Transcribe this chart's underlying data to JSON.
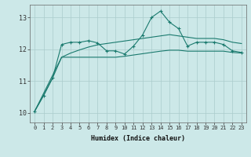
{
  "xlabel": "Humidex (Indice chaleur)",
  "background_color": "#cce8e8",
  "line_color": "#1a7a6e",
  "grid_color": "#aacccc",
  "xlim": [
    -0.5,
    23.5
  ],
  "ylim": [
    9.7,
    13.4
  ],
  "yticks": [
    10,
    11,
    12,
    13
  ],
  "xticks": [
    0,
    1,
    2,
    3,
    4,
    5,
    6,
    7,
    8,
    9,
    10,
    11,
    12,
    13,
    14,
    15,
    16,
    17,
    18,
    19,
    20,
    21,
    22,
    23
  ],
  "series1_x": [
    0,
    1,
    2,
    3,
    4,
    5,
    6,
    7,
    8,
    9,
    10,
    11,
    12,
    13,
    14,
    15,
    16,
    17,
    18,
    19,
    20,
    21,
    22,
    23
  ],
  "series1_y": [
    10.05,
    10.55,
    11.1,
    12.15,
    12.22,
    12.22,
    12.27,
    12.2,
    11.95,
    11.95,
    11.85,
    12.1,
    12.45,
    13.0,
    13.2,
    12.85,
    12.65,
    12.1,
    12.22,
    12.22,
    12.22,
    12.15,
    11.95,
    11.9
  ],
  "series2_x": [
    0,
    3,
    4,
    5,
    6,
    7,
    8,
    9,
    10,
    11,
    12,
    13,
    14,
    15,
    16,
    17,
    18,
    19,
    20,
    21,
    22,
    23
  ],
  "series2_y": [
    10.05,
    11.75,
    11.75,
    11.75,
    11.75,
    11.75,
    11.75,
    11.75,
    11.78,
    11.82,
    11.86,
    11.9,
    11.94,
    11.97,
    11.97,
    11.94,
    11.94,
    11.94,
    11.94,
    11.94,
    11.9,
    11.88
  ],
  "series3_x": [
    0,
    1,
    2,
    3,
    4,
    5,
    6,
    7,
    8,
    9,
    10,
    11,
    12,
    13,
    14,
    15,
    16,
    17,
    18,
    19,
    20,
    21,
    22,
    23
  ],
  "series3_y": [
    10.05,
    10.55,
    11.1,
    11.75,
    11.88,
    11.98,
    12.07,
    12.14,
    12.18,
    12.22,
    12.26,
    12.3,
    12.34,
    12.38,
    12.42,
    12.46,
    12.42,
    12.38,
    12.34,
    12.34,
    12.34,
    12.3,
    12.22,
    12.18
  ]
}
